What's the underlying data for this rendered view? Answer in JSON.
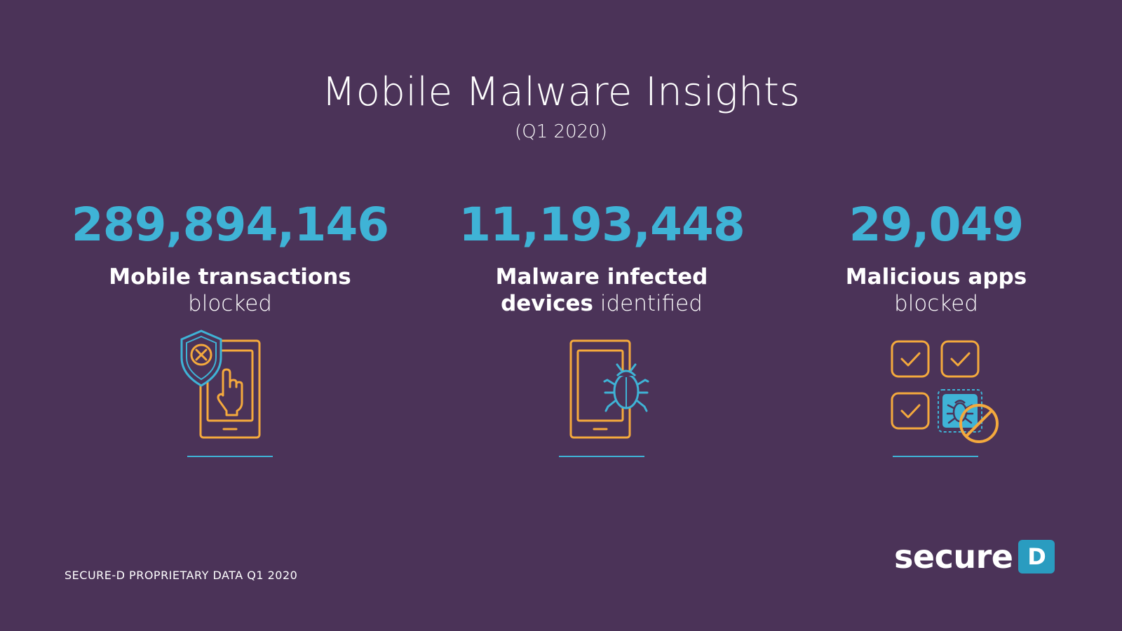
{
  "header": {
    "title": "Mobile Malware Insights",
    "subtitle": "(Q1 2020)"
  },
  "stats": [
    {
      "value": "289,894,146",
      "label_bold": "Mobile transactions",
      "label_light": "blocked",
      "icon": "tablet-shield-tap-icon"
    },
    {
      "value": "11,193,448",
      "label_bold_1": "Malware infected",
      "label_bold_2": "devices",
      "label_light": "identified",
      "icon": "tablet-bug-icon"
    },
    {
      "value": "29,049",
      "label_bold": "Malicious apps",
      "label_light": "blocked",
      "icon": "blocked-app-grid-icon"
    }
  ],
  "footer": {
    "note": "SECURE-D PROPRIETARY DATA Q1 2020"
  },
  "brand": {
    "name": "secure",
    "badge": "D"
  },
  "colors": {
    "background": "#4b3358",
    "accent_blue": "#3fb3d6",
    "accent_orange": "#f4a93d",
    "text": "#ffffff"
  }
}
